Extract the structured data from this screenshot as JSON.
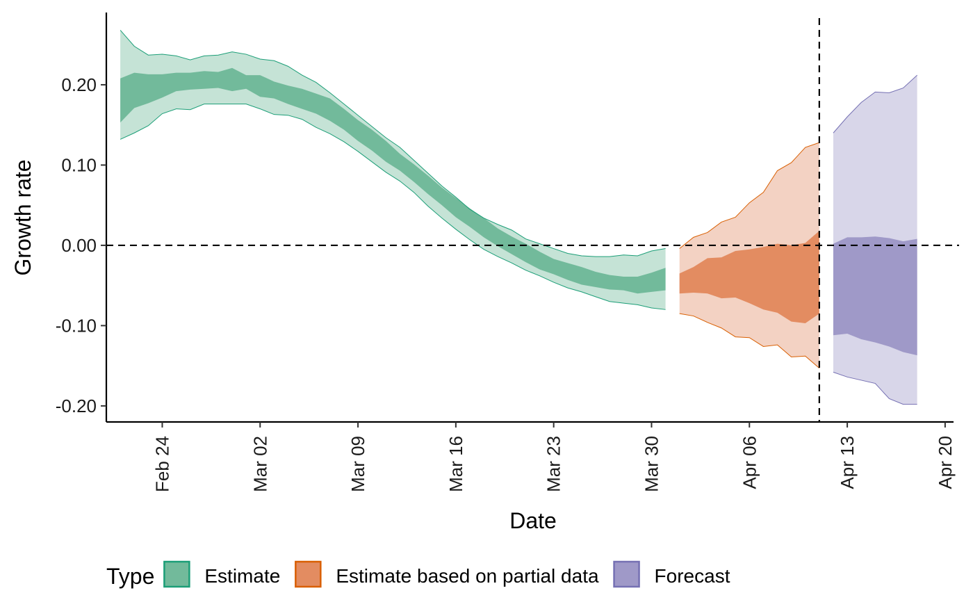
{
  "chart_data": {
    "type": "area",
    "xlabel": "Date",
    "ylabel": "Growth rate",
    "x_axis": {
      "start": "2020-02-20",
      "end": "2020-04-21",
      "tick_dates": [
        "2020-02-24",
        "2020-03-02",
        "2020-03-09",
        "2020-03-16",
        "2020-03-23",
        "2020-03-30",
        "2020-04-06",
        "2020-04-13",
        "2020-04-20"
      ],
      "tick_labels": [
        "Feb 24",
        "Mar 02",
        "Mar 09",
        "Mar 16",
        "Mar 23",
        "Mar 30",
        "Apr 06",
        "Apr 13",
        "Apr 20"
      ]
    },
    "y_axis": {
      "ylim": [
        -0.22,
        0.29
      ],
      "ticks": [
        -0.2,
        -0.1,
        0.0,
        0.1,
        0.2
      ],
      "tick_labels": [
        "-0.20",
        "-0.10",
        "0.00",
        "0.10",
        "0.20"
      ]
    },
    "reference_lines": {
      "hline_y": 0.0,
      "vline_date": "2020-04-11"
    },
    "legend": {
      "title": "Type",
      "position": "bottom",
      "entries": [
        {
          "label": "Estimate",
          "fill": "#72BA9B",
          "border": "#1B9E77"
        },
        {
          "label": "Estimate based on partial data",
          "fill": "#E38C61",
          "border": "#D95F02"
        },
        {
          "label": "Forecast",
          "fill": "#9F99C8",
          "border": "#7570B3"
        }
      ]
    },
    "series": [
      {
        "name": "Estimate",
        "outer_fill": "#C5E3D6",
        "inner_fill": "#72BA9B",
        "line_color": "#1B9E77",
        "x": [
          "2020-02-21",
          "2020-02-22",
          "2020-02-23",
          "2020-02-24",
          "2020-02-25",
          "2020-02-26",
          "2020-02-27",
          "2020-02-28",
          "2020-02-29",
          "2020-03-01",
          "2020-03-02",
          "2020-03-03",
          "2020-03-04",
          "2020-03-05",
          "2020-03-06",
          "2020-03-07",
          "2020-03-08",
          "2020-03-09",
          "2020-03-10",
          "2020-03-11",
          "2020-03-12",
          "2020-03-13",
          "2020-03-14",
          "2020-03-15",
          "2020-03-16",
          "2020-03-17",
          "2020-03-18",
          "2020-03-19",
          "2020-03-20",
          "2020-03-21",
          "2020-03-22",
          "2020-03-23",
          "2020-03-24",
          "2020-03-25",
          "2020-03-26",
          "2020-03-27",
          "2020-03-28",
          "2020-03-29",
          "2020-03-30",
          "2020-03-31"
        ],
        "lower90": [
          0.132,
          0.14,
          0.149,
          0.164,
          0.17,
          0.169,
          0.176,
          0.176,
          0.176,
          0.176,
          0.17,
          0.163,
          0.162,
          0.157,
          0.147,
          0.139,
          0.129,
          0.117,
          0.104,
          0.091,
          0.08,
          0.066,
          0.049,
          0.034,
          0.02,
          0.007,
          -0.005,
          -0.014,
          -0.022,
          -0.031,
          -0.038,
          -0.046,
          -0.053,
          -0.058,
          -0.064,
          -0.07,
          -0.072,
          -0.074,
          -0.078,
          -0.08
        ],
        "lower50": [
          0.153,
          0.171,
          0.177,
          0.184,
          0.192,
          0.194,
          0.195,
          0.196,
          0.192,
          0.195,
          0.185,
          0.183,
          0.176,
          0.17,
          0.164,
          0.155,
          0.144,
          0.13,
          0.118,
          0.104,
          0.093,
          0.079,
          0.064,
          0.05,
          0.035,
          0.023,
          0.01,
          -0.001,
          -0.011,
          -0.021,
          -0.03,
          -0.036,
          -0.043,
          -0.049,
          -0.052,
          -0.055,
          -0.056,
          -0.06,
          -0.058,
          -0.056
        ],
        "upper50": [
          0.208,
          0.215,
          0.213,
          0.213,
          0.215,
          0.215,
          0.217,
          0.216,
          0.221,
          0.212,
          0.212,
          0.204,
          0.199,
          0.195,
          0.189,
          0.183,
          0.17,
          0.156,
          0.144,
          0.13,
          0.114,
          0.101,
          0.087,
          0.072,
          0.059,
          0.046,
          0.034,
          0.021,
          0.011,
          0.002,
          -0.008,
          -0.017,
          -0.022,
          -0.027,
          -0.033,
          -0.037,
          -0.039,
          -0.039,
          -0.034,
          -0.028
        ],
        "upper90": [
          0.268,
          0.248,
          0.237,
          0.238,
          0.236,
          0.231,
          0.236,
          0.237,
          0.241,
          0.238,
          0.232,
          0.23,
          0.223,
          0.212,
          0.203,
          0.19,
          0.176,
          0.162,
          0.148,
          0.134,
          0.122,
          0.106,
          0.09,
          0.074,
          0.06,
          0.045,
          0.034,
          0.026,
          0.019,
          0.008,
          0.002,
          -0.004,
          -0.01,
          -0.013,
          -0.014,
          -0.014,
          -0.012,
          -0.013,
          -0.007,
          -0.004
        ]
      },
      {
        "name": "Estimate based on partial data",
        "outer_fill": "#F3D2C3",
        "inner_fill": "#E38C61",
        "line_color": "#D95F02",
        "x": [
          "2020-04-01",
          "2020-04-02",
          "2020-04-03",
          "2020-04-04",
          "2020-04-05",
          "2020-04-06",
          "2020-04-07",
          "2020-04-08",
          "2020-04-09",
          "2020-04-10",
          "2020-04-11"
        ],
        "lower90": [
          -0.085,
          -0.088,
          -0.096,
          -0.103,
          -0.114,
          -0.115,
          -0.126,
          -0.124,
          -0.139,
          -0.138,
          -0.153
        ],
        "lower50": [
          -0.06,
          -0.059,
          -0.06,
          -0.066,
          -0.065,
          -0.072,
          -0.08,
          -0.084,
          -0.095,
          -0.097,
          -0.085
        ],
        "upper50": [
          -0.035,
          -0.027,
          -0.016,
          -0.015,
          -0.007,
          -0.005,
          -0.002,
          0.002,
          0.0,
          0.003,
          0.018
        ],
        "upper90": [
          -0.004,
          0.01,
          0.016,
          0.029,
          0.035,
          0.053,
          0.066,
          0.093,
          0.103,
          0.122,
          0.128
        ]
      },
      {
        "name": "Forecast",
        "outer_fill": "#D8D6E9",
        "inner_fill": "#9F99C8",
        "line_color": "#7570B3",
        "x": [
          "2020-04-12",
          "2020-04-13",
          "2020-04-14",
          "2020-04-15",
          "2020-04-16",
          "2020-04-17",
          "2020-04-18"
        ],
        "lower90": [
          -0.158,
          -0.164,
          -0.168,
          -0.172,
          -0.191,
          -0.198,
          -0.198
        ],
        "lower50": [
          -0.112,
          -0.11,
          -0.117,
          -0.121,
          -0.126,
          -0.133,
          -0.137
        ],
        "upper50": [
          0.002,
          0.01,
          0.01,
          0.011,
          0.009,
          0.005,
          0.008
        ],
        "upper90": [
          0.14,
          0.16,
          0.178,
          0.191,
          0.19,
          0.196,
          0.212
        ]
      }
    ]
  }
}
